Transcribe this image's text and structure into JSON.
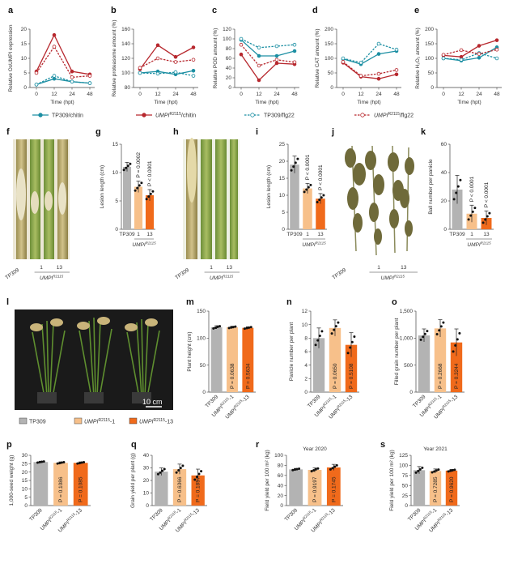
{
  "colors": {
    "tp": "#1c8fa3",
    "umpi": "#b7282e",
    "grey": "#b3b3b3",
    "peach": "#f7c08a",
    "orange": "#f06a1b",
    "axis": "#444444"
  },
  "sup_umpi": "R2115",
  "legend": [
    {
      "label": "TP309/chitin",
      "color": "#1c8fa3",
      "dash": false,
      "marker": "filled"
    },
    {
      "label": "UMPI",
      "sup": "R2115",
      "suffix": "/chitin",
      "color": "#b7282e",
      "dash": false,
      "marker": "filled"
    },
    {
      "label": "TP309/flg22",
      "color": "#1c8fa3",
      "dash": true,
      "marker": "open"
    },
    {
      "label": "UMPI",
      "sup": "R2115",
      "suffix": "/flg22",
      "color": "#b7282e",
      "dash": true,
      "marker": "open"
    }
  ],
  "photos": {
    "f": {
      "labels": [
        "TP309",
        "1",
        "13"
      ],
      "group": "UMPI"
    },
    "h": {
      "labels": [
        "TP309",
        "1",
        "13"
      ],
      "group": "UMPI"
    },
    "j": {
      "labels": [
        "TP309",
        "1",
        "13"
      ],
      "group": "UMPI"
    },
    "l": {
      "scale": "10 cm",
      "legend": [
        {
          "text": "TP309",
          "color": "#b3b3b3"
        },
        {
          "text": "UMPI",
          "sup": "R2115",
          "suffix": "-1",
          "color": "#f7c08a"
        },
        {
          "text": "UMPI",
          "sup": "R2115",
          "suffix": "-13",
          "color": "#f06a1b"
        }
      ]
    }
  },
  "chart_data": [
    {
      "id": "a",
      "type": "line",
      "xlabel": "Time (hpt)",
      "ylabel": "Relative OsUMPI expression",
      "x": [
        0,
        12,
        24,
        48
      ],
      "ylim": [
        0,
        20
      ],
      "yticks": [
        0,
        5,
        10,
        15,
        20
      ],
      "series": [
        {
          "name": "TP309/chitin",
          "values": [
            1,
            3,
            2,
            1.5
          ]
        },
        {
          "name": "UMPI-R2115/chitin",
          "values": [
            5.5,
            18,
            5.5,
            4.5
          ]
        },
        {
          "name": "TP309/flg22",
          "values": [
            1,
            4,
            2,
            1.5
          ]
        },
        {
          "name": "UMPI-R2115/flg22",
          "values": [
            5,
            14,
            3.5,
            4
          ]
        }
      ]
    },
    {
      "id": "b",
      "type": "line",
      "xlabel": "Time (hpt)",
      "ylabel": "Relative proteasome amount (%)",
      "x": [
        0,
        12,
        24,
        48
      ],
      "ylim": [
        80,
        160
      ],
      "yticks": [
        80,
        100,
        120,
        140,
        160
      ],
      "series": [
        {
          "name": "TP309/chitin",
          "values": [
            100,
            102,
            98,
            103
          ]
        },
        {
          "name": "UMPI-R2115/chitin",
          "values": [
            105,
            138,
            122,
            135
          ]
        },
        {
          "name": "TP309/flg22",
          "values": [
            100,
            99,
            101,
            96
          ]
        },
        {
          "name": "UMPI-R2115/flg22",
          "values": [
            107,
            120,
            115,
            118
          ]
        }
      ]
    },
    {
      "id": "c",
      "type": "line",
      "xlabel": "Time (hpt)",
      "ylabel": "Relative POD amount (%)",
      "x": [
        0,
        12,
        24,
        48
      ],
      "ylim": [
        0,
        120
      ],
      "yticks": [
        0,
        20,
        40,
        60,
        80,
        100,
        120
      ],
      "series": [
        {
          "name": "TP309/chitin",
          "values": [
            98,
            65,
            65,
            75
          ]
        },
        {
          "name": "UMPI-R2115/chitin",
          "values": [
            68,
            15,
            50,
            48
          ]
        },
        {
          "name": "TP309/flg22",
          "values": [
            100,
            82,
            85,
            88
          ]
        },
        {
          "name": "UMPI-R2115/flg22",
          "values": [
            88,
            45,
            57,
            52
          ]
        }
      ]
    },
    {
      "id": "d",
      "type": "line",
      "xlabel": "Time (hpt)",
      "ylabel": "Relative CAT amount (%)",
      "x": [
        0,
        12,
        24,
        48
      ],
      "ylim": [
        0,
        200
      ],
      "yticks": [
        0,
        50,
        100,
        150,
        200
      ],
      "series": [
        {
          "name": "TP309/chitin",
          "values": [
            98,
            80,
            115,
            125
          ]
        },
        {
          "name": "UMPI-R2115/chitin",
          "values": [
            85,
            37,
            30,
            45
          ]
        },
        {
          "name": "TP309/flg22",
          "values": [
            100,
            85,
            150,
            130
          ]
        },
        {
          "name": "UMPI-R2115/flg22",
          "values": [
            88,
            40,
            47,
            60
          ]
        }
      ]
    },
    {
      "id": "e",
      "type": "line",
      "xlabel": "Time (hpt)",
      "ylabel": "Relative H2O2 amount (%)",
      "x": [
        0,
        12,
        24,
        48
      ],
      "ylim": [
        0,
        200
      ],
      "yticks": [
        0,
        50,
        100,
        150,
        200
      ],
      "series": [
        {
          "name": "TP309/chitin",
          "values": [
            100,
            92,
            102,
            138
          ]
        },
        {
          "name": "UMPI-R2115/chitin",
          "values": [
            110,
            105,
            143,
            162
          ]
        },
        {
          "name": "TP309/flg22",
          "values": [
            100,
            95,
            118,
            100
          ]
        },
        {
          "name": "UMPI-R2115/flg22",
          "values": [
            112,
            128,
            115,
            130
          ]
        }
      ]
    },
    {
      "id": "g",
      "type": "bar",
      "ylabel": "Lesion length (cm)",
      "categories": [
        "TP309",
        "1",
        "13"
      ],
      "group_label": "UMPI",
      "values": [
        11,
        7.5,
        6
      ],
      "errors": [
        0.8,
        1,
        1
      ],
      "ylim": [
        0,
        15
      ],
      "yticks": [
        0,
        5,
        10,
        15
      ],
      "pvalues": [
        "",
        "P = 0.0002",
        "P < 0.0001"
      ],
      "ptext_pos": "above",
      "colors": [
        "#b3b3b3",
        "#f7c08a",
        "#f06a1b"
      ]
    },
    {
      "id": "i",
      "type": "bar",
      "ylabel": "Lesion length (cm)",
      "categories": [
        "TP309",
        "1",
        "13"
      ],
      "group_label": "UMPI",
      "values": [
        19,
        12,
        9
      ],
      "errors": [
        2.5,
        1.5,
        1.5
      ],
      "ylim": [
        0,
        25
      ],
      "yticks": [
        0,
        5,
        10,
        15,
        20,
        25
      ],
      "pvalues": [
        "",
        "P < 0.0001",
        "P < 0.0001"
      ],
      "ptext_pos": "above",
      "colors": [
        "#b3b3b3",
        "#f7c08a",
        "#f06a1b"
      ]
    },
    {
      "id": "k",
      "type": "bar",
      "ylabel": "Ball number per panicle",
      "categories": [
        "TP309",
        "1",
        "13"
      ],
      "group_label": "UMPI",
      "values": [
        28,
        11,
        8
      ],
      "errors": [
        10,
        6,
        5
      ],
      "ylim": [
        0,
        60
      ],
      "yticks": [
        0,
        20,
        40,
        60
      ],
      "pvalues": [
        "",
        "P < 0.0001",
        "P < 0.0001"
      ],
      "ptext_pos": "above",
      "colors": [
        "#b3b3b3",
        "#f7c08a",
        "#f06a1b"
      ]
    },
    {
      "id": "m",
      "type": "bar",
      "ylabel": "Plant height (cm)",
      "categories": [
        "TP309",
        "UMPI-1",
        "UMPI-13"
      ],
      "values": [
        120,
        120,
        119
      ],
      "errors": [
        3,
        2,
        2
      ],
      "ylim": [
        0,
        150
      ],
      "yticks": [
        0,
        50,
        100,
        150
      ],
      "pvalues": [
        "",
        "P = 0.0638",
        "P = 0.5634"
      ],
      "ptext_pos": "inside",
      "colors": [
        "#b3b3b3",
        "#f7c08a",
        "#f06a1b"
      ]
    },
    {
      "id": "n",
      "type": "bar",
      "ylabel": "Panicle number per plant",
      "categories": [
        "TP309",
        "UMPI-1",
        "UMPI-13"
      ],
      "values": [
        8,
        9.5,
        7
      ],
      "errors": [
        1.5,
        1.2,
        1.8
      ],
      "ylim": [
        0,
        12
      ],
      "yticks": [
        0,
        2,
        4,
        6,
        8,
        10,
        12
      ],
      "pvalues": [
        "",
        "P = 0.0650",
        "P = 0.5108"
      ],
      "ptext_pos": "inside",
      "colors": [
        "#b3b3b3",
        "#f7c08a",
        "#f06a1b"
      ]
    },
    {
      "id": "o",
      "type": "bar",
      "ylabel": "Filled grain number per plant",
      "categories": [
        "TP309",
        "UMPI-1",
        "UMPI-13"
      ],
      "values": [
        1050,
        1180,
        920
      ],
      "errors": [
        120,
        160,
        250
      ],
      "ylim": [
        0,
        1500
      ],
      "yticks": [
        0,
        500,
        1000,
        1500
      ],
      "ytick_labels": [
        "0",
        "500",
        "1,000",
        "1,500"
      ],
      "pvalues": [
        "",
        "P = 0.2668",
        "P = 0.3244"
      ],
      "ptext_pos": "inside",
      "colors": [
        "#b3b3b3",
        "#f7c08a",
        "#f06a1b"
      ]
    },
    {
      "id": "p",
      "type": "bar",
      "ylabel": "1,000-seed weight (g)",
      "categories": [
        "TP309",
        "UMPI-1",
        "UMPI-13"
      ],
      "values": [
        26,
        25.5,
        25.5
      ],
      "errors": [
        0.5,
        0.6,
        0.6
      ],
      "ylim": [
        0,
        30
      ],
      "yticks": [
        0,
        5,
        10,
        15,
        20,
        25,
        30
      ],
      "pvalues": [
        "",
        "P = 0.1086",
        "P = 0.1085"
      ],
      "ptext_pos": "inside",
      "colors": [
        "#b3b3b3",
        "#f7c08a",
        "#f06a1b"
      ]
    },
    {
      "id": "q",
      "type": "bar",
      "ylabel": "Grain yield per plant (g)",
      "categories": [
        "TP309",
        "UMPI-1",
        "UMPI-13"
      ],
      "values": [
        27,
        29,
        24
      ],
      "errors": [
        3,
        4,
        5
      ],
      "ylim": [
        0,
        40
      ],
      "yticks": [
        0,
        10,
        20,
        30,
        40
      ],
      "pvalues": [
        "",
        "P = 0.6366",
        "P = 0.1857"
      ],
      "ptext_pos": "inside",
      "colors": [
        "#b3b3b3",
        "#f7c08a",
        "#f06a1b"
      ]
    },
    {
      "id": "r",
      "type": "bar",
      "title": "Year 2020",
      "ylabel": "Field yield per 100 m2 (kg)",
      "categories": [
        "TP309",
        "UMPI-1",
        "UMPI-13"
      ],
      "values": [
        72,
        71,
        76
      ],
      "errors": [
        2,
        4,
        6
      ],
      "ylim": [
        0,
        100
      ],
      "yticks": [
        0,
        20,
        40,
        60,
        80,
        100
      ],
      "pvalues": [
        "",
        "P = 0.9197",
        "P = 0.1745"
      ],
      "ptext_pos": "inside",
      "colors": [
        "#b3b3b3",
        "#f7c08a",
        "#f06a1b"
      ]
    },
    {
      "id": "s",
      "type": "bar",
      "title": "Year 2021",
      "ylabel": "Field yield per 100 m2 (kg)",
      "categories": [
        "TP309",
        "UMPI-1",
        "UMPI-13"
      ],
      "values": [
        88,
        86,
        87
      ],
      "errors": [
        9,
        5,
        3
      ],
      "ylim": [
        0,
        125
      ],
      "yticks": [
        0,
        25,
        50,
        75,
        100,
        125
      ],
      "pvalues": [
        "",
        "P = 0.7285",
        "P = 0.9620"
      ],
      "ptext_pos": "inside",
      "colors": [
        "#b3b3b3",
        "#f7c08a",
        "#f06a1b"
      ]
    }
  ]
}
